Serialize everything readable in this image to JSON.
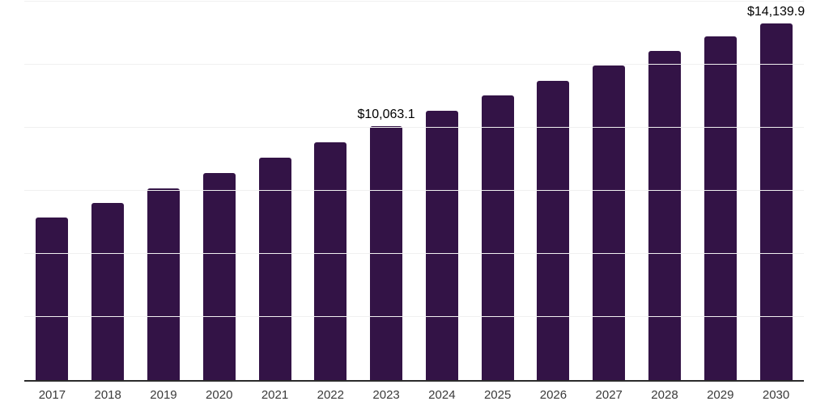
{
  "chart_data": {
    "type": "bar",
    "title": "",
    "xlabel": "",
    "ylabel": "",
    "categories": [
      "2017",
      "2018",
      "2019",
      "2020",
      "2021",
      "2022",
      "2023",
      "2024",
      "2025",
      "2026",
      "2027",
      "2028",
      "2029",
      "2030"
    ],
    "values": [
      6435,
      7010,
      7610,
      8220,
      8830,
      9410,
      10063.1,
      10670,
      11280,
      11850,
      12455,
      13055,
      13630,
      14139.9
    ],
    "data_labels": {
      "2023": "$10,063.1",
      "2030": "$14,139.9"
    },
    "ylim": [
      0,
      15000
    ],
    "grid_step": 2500,
    "grid": true,
    "y_tick_labels_visible": false,
    "legend": "none",
    "bar_color": "#331346",
    "grid_color": "#f0f0f0",
    "axis_color": "#2b2b2b",
    "data_label_color": "#000000",
    "tick_label_color": "#3a3a3a"
  }
}
